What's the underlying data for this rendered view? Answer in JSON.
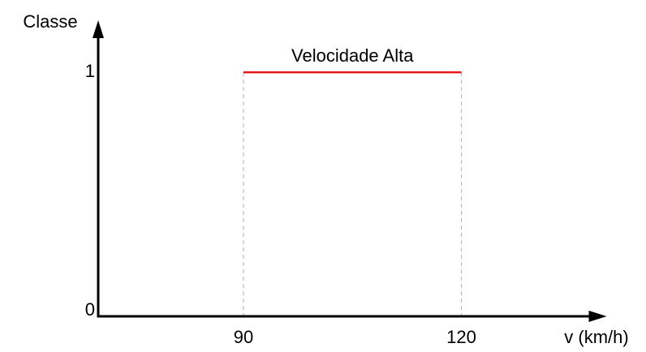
{
  "chart_data": {
    "type": "line",
    "y_label": "Classe",
    "x_label": "v (km/h)",
    "x": [
      90,
      120
    ],
    "series": [
      {
        "name": "Velocidade Alta",
        "color": "#e8141c",
        "values": [
          1,
          1
        ]
      }
    ],
    "xlim": [
      70,
      140
    ],
    "ylim": [
      0,
      1.2
    ],
    "xticks": [
      90,
      120
    ],
    "yticks": [
      0,
      1
    ]
  }
}
